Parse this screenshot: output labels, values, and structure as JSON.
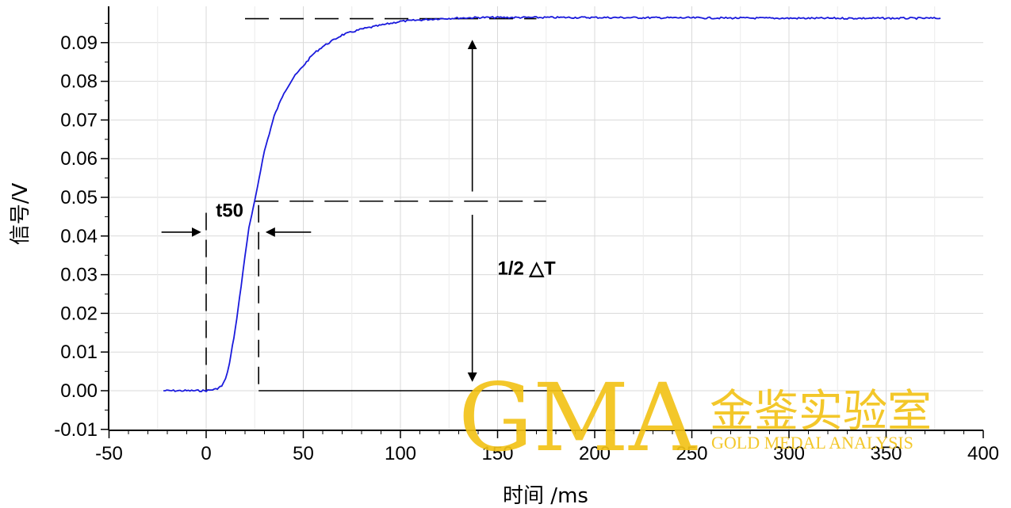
{
  "chart_data": {
    "type": "line",
    "xlabel": "时间 /ms",
    "ylabel": "信号/V",
    "xlim": [
      -50,
      400
    ],
    "ylim": [
      -0.01,
      0.1
    ],
    "x_ticks": [
      -50,
      0,
      50,
      100,
      150,
      200,
      250,
      300,
      350,
      400
    ],
    "x_tick_labels": [
      "-50",
      "0",
      "50",
      "100",
      "150",
      "200",
      "250",
      "300",
      "350",
      "400"
    ],
    "y_ticks": [
      -0.01,
      0.0,
      0.01,
      0.02,
      0.03,
      0.04,
      0.05,
      0.06,
      0.07,
      0.08,
      0.09
    ],
    "y_tick_labels": [
      "-0.01",
      "0.00",
      "0.01",
      "0.02",
      "0.03",
      "0.04",
      "0.05",
      "0.06",
      "0.07",
      "0.08",
      "0.09"
    ],
    "grid": true,
    "series": [
      {
        "color": "#1a1adc",
        "x": [
          -22,
          -10,
          0,
          5,
          8,
          10,
          12,
          15,
          18,
          20,
          22,
          25,
          28,
          30,
          35,
          40,
          45,
          50,
          55,
          60,
          70,
          80,
          90,
          100,
          120,
          140,
          160,
          200,
          250,
          300,
          350,
          378
        ],
        "y": [
          0.0,
          0.0,
          0.0,
          0.0004,
          0.0012,
          0.003,
          0.007,
          0.016,
          0.027,
          0.035,
          0.042,
          0.049,
          0.057,
          0.062,
          0.071,
          0.077,
          0.081,
          0.084,
          0.087,
          0.089,
          0.092,
          0.0935,
          0.0945,
          0.0955,
          0.0962,
          0.0965,
          0.0965,
          0.0965,
          0.0964,
          0.0963,
          0.0963,
          0.0963
        ]
      }
    ],
    "annotations": [
      {
        "text": "t50",
        "x": 5,
        "y": 0.045
      },
      {
        "text": "1/2 △T",
        "x": 150,
        "y": 0.03
      }
    ],
    "reference_lines": {
      "top_level_y": 0.0962,
      "half_level_y": 0.049,
      "t_start_x": 0,
      "t50_x": 27,
      "baseline_y": 0.0,
      "arrow_x": 137
    }
  },
  "watermark": {
    "big": "GMA",
    "cn": "金鉴实验室",
    "en": "GOLD MEDAL ANALYSIS"
  }
}
